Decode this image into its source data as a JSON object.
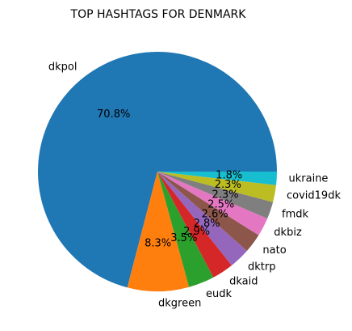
{
  "chart_data": {
    "type": "pie",
    "title": "TOP HASHTAGS FOR DENMARK",
    "start_angle_deg": 0,
    "direction": "counterclockwise",
    "slices": [
      {
        "label": "dkpol",
        "value": 70.8,
        "pct_label": "70.8%",
        "color": "#1f77b4"
      },
      {
        "label": "dkgreen",
        "value": 8.3,
        "pct_label": "8.3%",
        "color": "#ff7f0e"
      },
      {
        "label": "eudk",
        "value": 3.5,
        "pct_label": "3.5%",
        "color": "#2ca02c"
      },
      {
        "label": "dkaid",
        "value": 2.9,
        "pct_label": "2.9%",
        "color": "#d62728"
      },
      {
        "label": "dktrp",
        "value": 2.8,
        "pct_label": "2.8%",
        "color": "#9467bd"
      },
      {
        "label": "nato",
        "value": 2.6,
        "pct_label": "2.6%",
        "color": "#8c564b"
      },
      {
        "label": "dkbiz",
        "value": 2.5,
        "pct_label": "2.5%",
        "color": "#e377c2"
      },
      {
        "label": "fmdk",
        "value": 2.3,
        "pct_label": "2.3%",
        "color": "#7f7f7f"
      },
      {
        "label": "covid19dk",
        "value": 2.3,
        "pct_label": "2.3%",
        "color": "#bcbd22"
      },
      {
        "label": "ukraine",
        "value": 1.8,
        "pct_label": "1.8%",
        "color": "#17becf"
      }
    ]
  }
}
